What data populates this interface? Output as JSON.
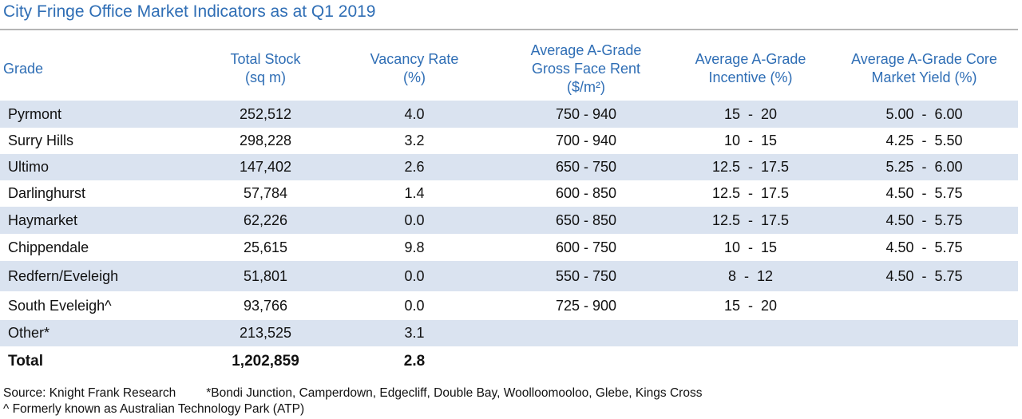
{
  "title": "City Fringe Office Market Indicators as at Q1 2019",
  "headers": [
    [
      "Grade"
    ],
    [
      "Total Stock",
      "(sq m)"
    ],
    [
      "Vacancy Rate",
      "(%)"
    ],
    [
      "Average A-Grade",
      "Gross Face Rent",
      "($/m²)"
    ],
    [
      "Average A-Grade",
      "Incentive (%)"
    ],
    [
      "Average A-Grade Core",
      "Market Yield (%)"
    ]
  ],
  "rows": [
    {
      "grade": "Pyrmont",
      "stock": "252,512",
      "vacancy": "4.0",
      "rent": "750 - 940",
      "incentive": "15  -  20",
      "yield": "5.00  -  6.00"
    },
    {
      "grade": "Surry Hills",
      "stock": "298,228",
      "vacancy": "3.2",
      "rent": "700 - 940",
      "incentive": "10  -  15",
      "yield": "4.25  -  5.50"
    },
    {
      "grade": "Ultimo",
      "stock": "147,402",
      "vacancy": "2.6",
      "rent": "650 - 750",
      "incentive": "12.5  -  17.5",
      "yield": "5.25  -  6.00"
    },
    {
      "grade": "Darlinghurst",
      "stock": "57,784",
      "vacancy": "1.4",
      "rent": "600 - 850",
      "incentive": "12.5  -  17.5",
      "yield": "4.50  -  5.75"
    },
    {
      "grade": "Haymarket",
      "stock": "62,226",
      "vacancy": "0.0",
      "rent": "650 - 850",
      "incentive": "12.5  -  17.5",
      "yield": "4.50  -  5.75"
    },
    {
      "grade": "Chippendale",
      "stock": "25,615",
      "vacancy": "9.8",
      "rent": "600 - 750",
      "incentive": "10  -  15",
      "yield": "4.50  -  5.75"
    },
    {
      "grade": "Redfern/Eveleigh",
      "stock": "51,801",
      "vacancy": "0.0",
      "rent": "550 - 750",
      "incentive": "8  -  12",
      "yield": "4.50  -  5.75"
    },
    {
      "grade": "South Eveleigh^",
      "stock": "93,766",
      "vacancy": "0.0",
      "rent": "725 - 900",
      "incentive": "15  -  20",
      "yield": ""
    },
    {
      "grade": "Other*",
      "stock": "213,525",
      "vacancy": "3.1",
      "rent": "",
      "incentive": "",
      "yield": ""
    },
    {
      "grade": "Total",
      "stock": "1,202,859",
      "vacancy": "2.8",
      "rent": "",
      "incentive": "",
      "yield": ""
    }
  ],
  "source": "Source: Knight Frank Research",
  "note_other": "*Bondi Junction, Camperdown, Edgecliff, Double Bay, Woolloomooloo, Glebe, Kings Cross",
  "note_caret": "^ Formerly known as Australian Technology Park (ATP)",
  "colors": {
    "heading": "#2f6eb5",
    "row_shade": "#dae3f0",
    "rule": "#b5b5b5"
  }
}
